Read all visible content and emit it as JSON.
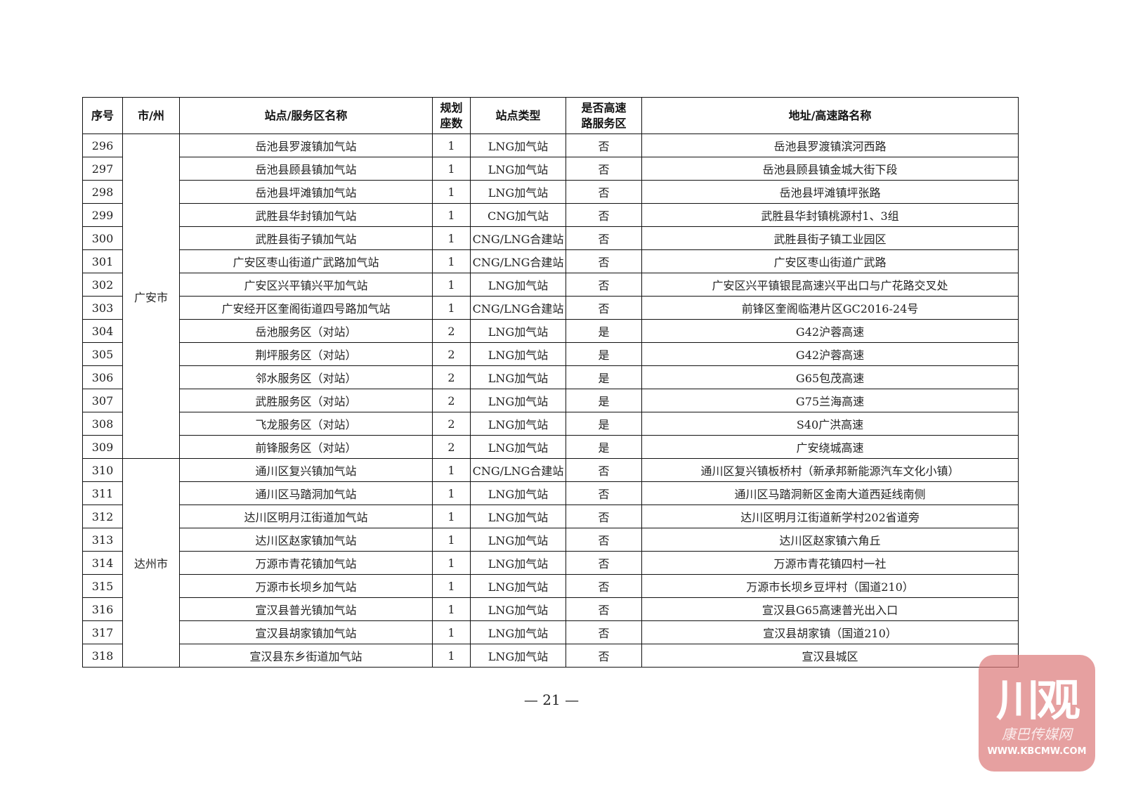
{
  "table": {
    "headers": [
      "序号",
      "市/州",
      "站点/服务区名称",
      "规划\n座数",
      "站点类型",
      "是否高速\n路服务区",
      "地址/高速路名称"
    ],
    "groups": [
      {
        "city": "广安市",
        "rows": [
          [
            "296",
            "岳池县罗渡镇加气站",
            "1",
            "LNG加气站",
            "否",
            "岳池县罗渡镇滨河西路"
          ],
          [
            "297",
            "岳池县顾县镇加气站",
            "1",
            "LNG加气站",
            "否",
            "岳池县顾县镇金城大街下段"
          ],
          [
            "298",
            "岳池县坪滩镇加气站",
            "1",
            "LNG加气站",
            "否",
            "岳池县坪滩镇坪张路"
          ],
          [
            "299",
            "武胜县华封镇加气站",
            "1",
            "CNG加气站",
            "否",
            "武胜县华封镇桃源村1、3组"
          ],
          [
            "300",
            "武胜县街子镇加气站",
            "1",
            "CNG/LNG合建站",
            "否",
            "武胜县街子镇工业园区"
          ],
          [
            "301",
            "广安区枣山街道广武路加气站",
            "1",
            "CNG/LNG合建站",
            "否",
            "广安区枣山街道广武路"
          ],
          [
            "302",
            "广安区兴平镇兴平加气站",
            "1",
            "LNG加气站",
            "否",
            "广安区兴平镇银昆高速兴平出口与广花路交叉处"
          ],
          [
            "303",
            "广安经开区奎阁街道四号路加气站",
            "1",
            "CNG/LNG合建站",
            "否",
            "前锋区奎阁临港片区GC2016-24号"
          ],
          [
            "304",
            "岳池服务区（对站）",
            "2",
            "LNG加气站",
            "是",
            "G42沪蓉高速"
          ],
          [
            "305",
            "荆坪服务区（对站）",
            "2",
            "LNG加气站",
            "是",
            "G42沪蓉高速"
          ],
          [
            "306",
            "邻水服务区（对站）",
            "2",
            "LNG加气站",
            "是",
            "G65包茂高速"
          ],
          [
            "307",
            "武胜服务区（对站）",
            "2",
            "LNG加气站",
            "是",
            "G75兰海高速"
          ],
          [
            "308",
            "飞龙服务区（对站）",
            "2",
            "LNG加气站",
            "是",
            "S40广洪高速"
          ],
          [
            "309",
            "前锋服务区（对站）",
            "2",
            "LNG加气站",
            "是",
            "广安绕城高速"
          ]
        ]
      },
      {
        "city": "达州市",
        "rows": [
          [
            "310",
            "通川区复兴镇加气站",
            "1",
            "CNG/LNG合建站",
            "否",
            "通川区复兴镇板桥村（新承邦新能源汽车文化小镇）"
          ],
          [
            "311",
            "通川区马踏洞加气站",
            "1",
            "LNG加气站",
            "否",
            "通川区马踏洞新区金南大道西延线南侧"
          ],
          [
            "312",
            "达川区明月江街道加气站",
            "1",
            "LNG加气站",
            "否",
            "达川区明月江街道新学村202省道旁"
          ],
          [
            "313",
            "达川区赵家镇加气站",
            "1",
            "LNG加气站",
            "否",
            "达川区赵家镇六角丘"
          ],
          [
            "314",
            "万源市青花镇加气站",
            "1",
            "LNG加气站",
            "否",
            "万源市青花镇四村一社"
          ],
          [
            "315",
            "万源市长坝乡加气站",
            "1",
            "LNG加气站",
            "否",
            "万源市长坝乡豆坪村（国道210）"
          ],
          [
            "316",
            "宣汉县普光镇加气站",
            "1",
            "LNG加气站",
            "否",
            "宣汉县G65高速普光出入口"
          ],
          [
            "317",
            "宣汉县胡家镇加气站",
            "1",
            "LNG加气站",
            "否",
            "宣汉县胡家镇（国道210）"
          ],
          [
            "318",
            "宣汉县东乡街道加气站",
            "1",
            "LNG加气站",
            "否",
            "宣汉县城区"
          ]
        ]
      }
    ]
  },
  "page_number": "— 21 —",
  "watermark": {
    "logo": "川观",
    "sub": "康巴传媒网",
    "url": "WWW.KBCMW.COM",
    "color": "#e68c8c"
  }
}
